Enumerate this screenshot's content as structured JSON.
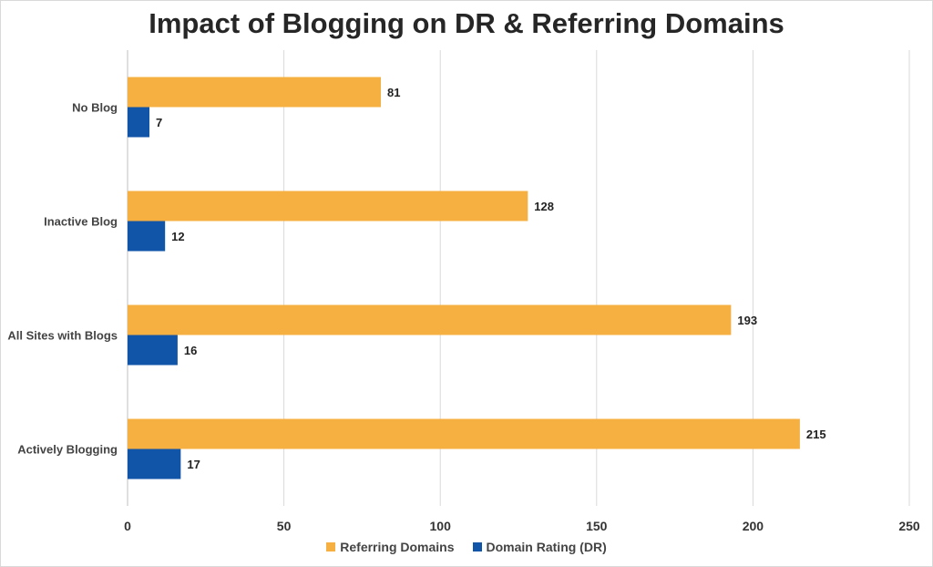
{
  "chart_data": {
    "type": "bar",
    "orientation": "horizontal",
    "title": "Impact of Blogging on DR & Referring Domains",
    "categories": [
      "No Blog",
      "Inactive Blog",
      "All Sites with Blogs",
      "Actively Blogging"
    ],
    "series": [
      {
        "name": "Referring Domains",
        "values": [
          81,
          128,
          193,
          215
        ],
        "color": "#F5B041"
      },
      {
        "name": "Domain Rating (DR)",
        "values": [
          7,
          12,
          16,
          17
        ],
        "color": "#1155A8"
      }
    ],
    "x_ticks": [
      "0",
      "50",
      "100",
      "150",
      "200",
      "250"
    ],
    "xlim": [
      0,
      250
    ],
    "grid": "vertical",
    "legend_position": "bottom"
  }
}
